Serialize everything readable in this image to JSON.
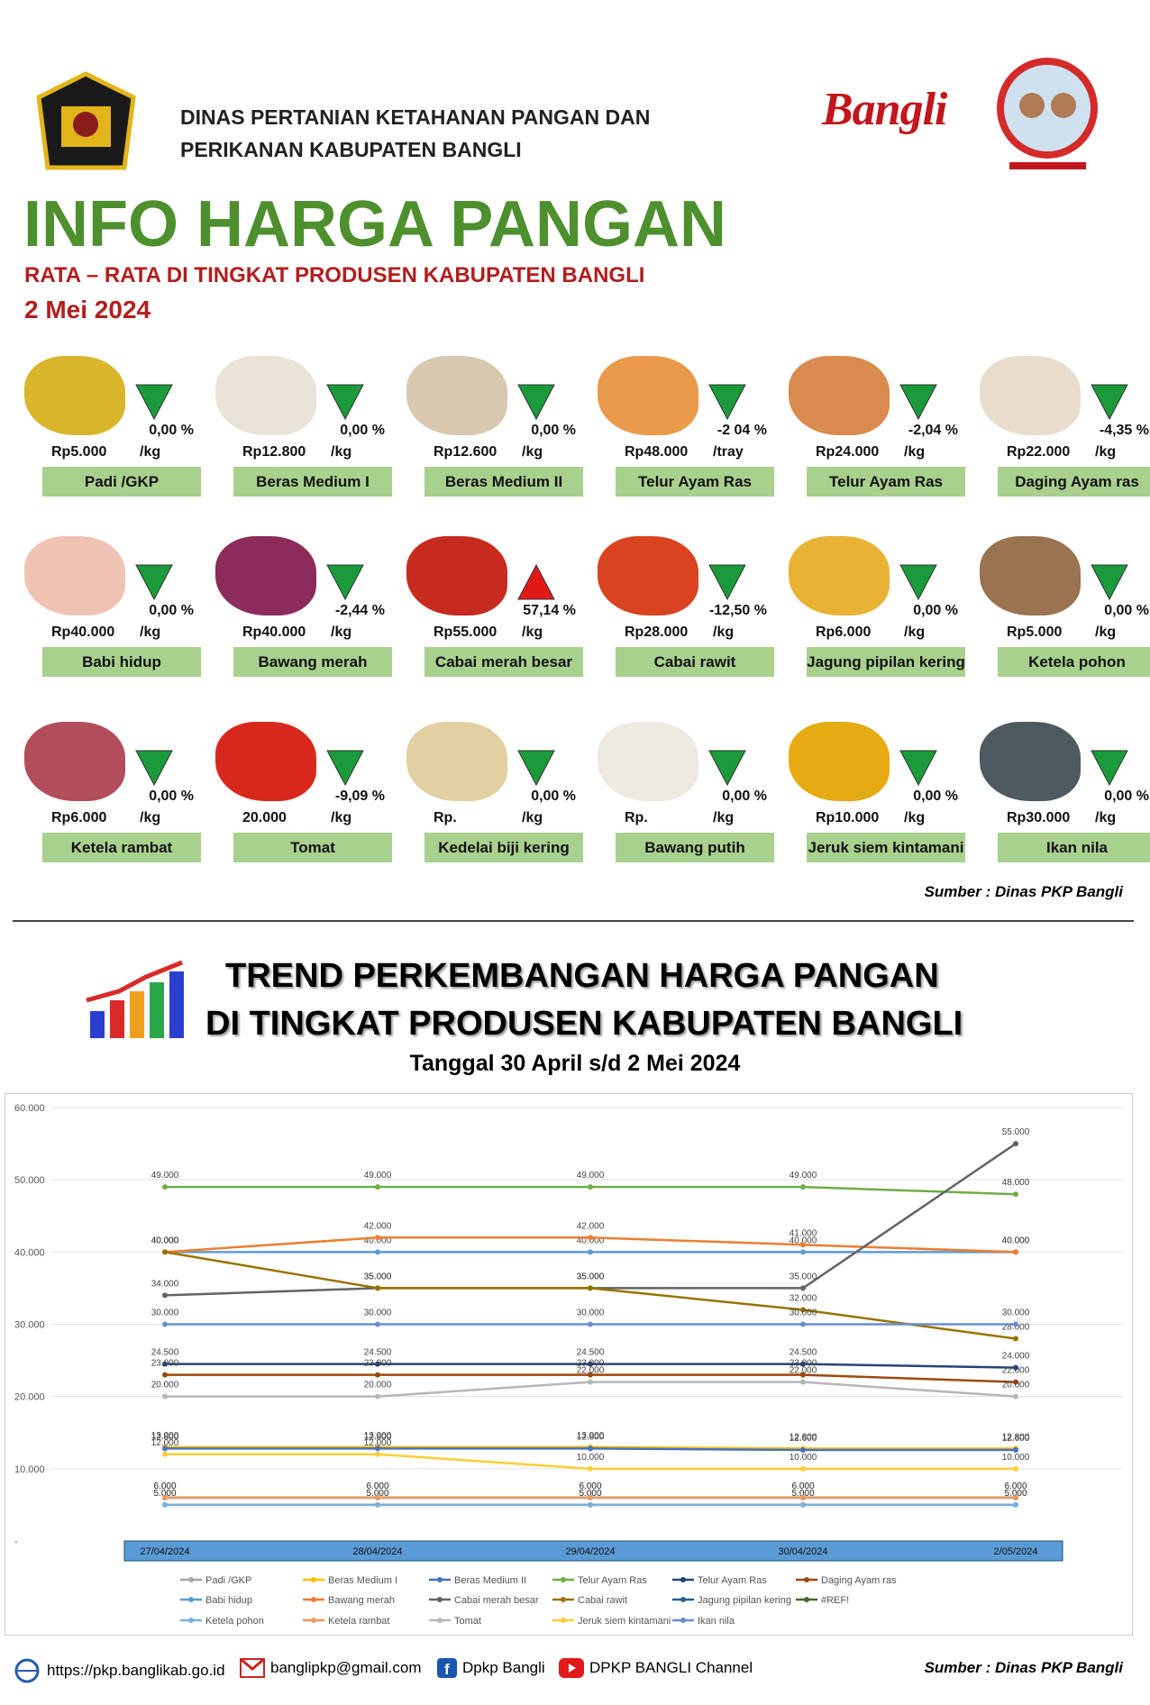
{
  "header": {
    "org": [
      "DINAS PERTANIAN KETAHANAN PANGAN DAN",
      "PERIKANAN KABUPATEN BANGLI"
    ],
    "brand": "Bangli",
    "title": "INFO HARGA PANGAN",
    "subtitle": "RATA – RATA DI TINGKAT PRODUSEN KABUPATEN BANGLI",
    "date": "2 Mei 2024"
  },
  "items": [
    {
      "name": "Padi /GKP",
      "price": "Rp5.000",
      "unit": "/kg",
      "change": "0,00 %",
      "trend": "down"
    },
    {
      "name": "Beras Medium I",
      "price": "Rp12.800",
      "unit": "/kg",
      "change": "0,00 %",
      "trend": "down"
    },
    {
      "name": "Beras Medium II",
      "price": "Rp12.600",
      "unit": "/kg",
      "change": "0,00 %",
      "trend": "down"
    },
    {
      "name": "Telur Ayam Ras",
      "price": "Rp48.000",
      "unit": "/tray",
      "change": "-2 04 %",
      "trend": "down"
    },
    {
      "name": "Telur Ayam Ras",
      "price": "Rp24.000",
      "unit": "/kg",
      "change": "-2,04 %",
      "trend": "down"
    },
    {
      "name": "Daging Ayam ras",
      "price": "Rp22.000",
      "unit": "/kg",
      "change": "-4,35 %",
      "trend": "down"
    },
    {
      "name": "Babi hidup",
      "price": "Rp40.000",
      "unit": "/kg",
      "change": "0,00 %",
      "trend": "down"
    },
    {
      "name": "Bawang merah",
      "price": "Rp40.000",
      "unit": "/kg",
      "change": "-2,44 %",
      "trend": "down"
    },
    {
      "name": "Cabai merah besar",
      "price": "Rp55.000",
      "unit": "/kg",
      "change": "57,14 %",
      "trend": "up"
    },
    {
      "name": "Cabai rawit",
      "price": "Rp28.000",
      "unit": "/kg",
      "change": "-12,50 %",
      "trend": "down"
    },
    {
      "name": "Jagung pipilan kering",
      "price": "Rp6.000",
      "unit": "/kg",
      "change": "0,00 %",
      "trend": "down"
    },
    {
      "name": "Ketela pohon",
      "price": "Rp5.000",
      "unit": "/kg",
      "change": "0,00 %",
      "trend": "down"
    },
    {
      "name": "Ketela rambat",
      "price": "Rp6.000",
      "unit": "/kg",
      "change": "0,00 %",
      "trend": "down"
    },
    {
      "name": "Tomat",
      "price": "20.000",
      "unit": "/kg",
      "change": "-9,09 %",
      "trend": "down"
    },
    {
      "name": "Kedelai biji kering",
      "price": "Rp.",
      "unit": "/kg",
      "change": "0,00 %",
      "trend": "down"
    },
    {
      "name": "Bawang putih",
      "price": "Rp.",
      "unit": "/kg",
      "change": "0,00 %",
      "trend": "down"
    },
    {
      "name": "Jeruk siem kintamani",
      "price": "Rp10.000",
      "unit": "/kg",
      "change": "0,00 %",
      "trend": "down"
    },
    {
      "name": "Ikan nila",
      "price": "Rp30.000",
      "unit": "/kg",
      "change": "0,00 %",
      "trend": "down"
    }
  ],
  "source": "Sumber : Dinas PKP Bangli",
  "trend": {
    "title": [
      "TREND PERKEMBANGAN HARGA PANGAN",
      "DI TINGKAT PRODUSEN KABUPATEN BANGLI"
    ],
    "subtitle": "Tanggal 30 April s/d 2 Mei 2024"
  },
  "chart_data": {
    "type": "line",
    "categories": [
      "27/04/2024",
      "28/04/2024",
      "29/04/2024",
      "30/04/2024",
      "2/05/2024"
    ],
    "ylim": [
      0,
      60000
    ],
    "yticks": [
      {
        "value": 0,
        "label": "-"
      },
      {
        "value": 10000,
        "label": "10.000"
      },
      {
        "value": 20000,
        "label": "20.000"
      },
      {
        "value": 30000,
        "label": "30.000"
      },
      {
        "value": 40000,
        "label": "40.000"
      },
      {
        "value": 50000,
        "label": "50.000"
      },
      {
        "value": 60000,
        "label": "60.000"
      }
    ],
    "grid": true,
    "series": [
      {
        "name": "Padi /GKP",
        "color": "#a5a5a5",
        "values": [
          5000,
          5000,
          5000,
          5000,
          5000
        ],
        "value_labels": [
          "5.000",
          "5.000",
          "5.000",
          "5.000",
          "5.000"
        ]
      },
      {
        "name": "Beras Medium I",
        "color": "#ffc000",
        "values": [
          13000,
          13000,
          13000,
          12800,
          12800
        ],
        "value_labels": [
          "13.000",
          "13.000",
          "13.000",
          "12.800",
          "12.800"
        ]
      },
      {
        "name": "Beras Medium II",
        "color": "#4472c4",
        "values": [
          12800,
          12800,
          12800,
          12600,
          12600
        ],
        "value_labels": [
          "12.800",
          "12.800",
          "12.800",
          "12.600",
          "12.600"
        ]
      },
      {
        "name": "Telur Ayam Ras",
        "color": "#70ad47",
        "values": [
          49000,
          49000,
          49000,
          49000,
          48000
        ],
        "value_labels": [
          "49.000",
          "49.000",
          "49.000",
          "49.000",
          "48.000"
        ]
      },
      {
        "name": "Telur Ayam Ras",
        "color": "#264478",
        "values": [
          24500,
          24500,
          24500,
          24500,
          24000
        ],
        "value_labels": [
          "24.500",
          "24.500",
          "24.500",
          "24.500",
          "24.000"
        ]
      },
      {
        "name": "Daging Ayam ras",
        "color": "#9e480e",
        "values": [
          23000,
          23000,
          23000,
          23000,
          22000
        ],
        "value_labels": [
          "23.000",
          "23.000",
          "23.000",
          "23.000",
          "22.000"
        ]
      },
      {
        "name": "Babi hidup",
        "color": "#5b9bd5",
        "values": [
          40000,
          40000,
          40000,
          40000,
          40000
        ],
        "value_labels": [
          "40.000",
          "40.000",
          "40.000",
          "40.000",
          "40.000"
        ]
      },
      {
        "name": "Bawang merah",
        "color": "#ed7d31",
        "values": [
          40000,
          42000,
          42000,
          41000,
          40000
        ],
        "value_labels": [
          "40.000",
          "42.000",
          "42.000",
          "41.000",
          "40.000"
        ]
      },
      {
        "name": "Cabai merah besar",
        "color": "#636363",
        "values": [
          34000,
          35000,
          35000,
          35000,
          55000
        ],
        "value_labels": [
          "34.000",
          "35.000",
          "35.000",
          "35.000",
          "55.000"
        ]
      },
      {
        "name": "Cabai rawit",
        "color": "#997300",
        "values": [
          40000,
          35000,
          35000,
          32000,
          28000
        ],
        "value_labels": [
          "40.000",
          "35.000",
          "35.000",
          "32.000",
          "28.000"
        ]
      },
      {
        "name": "Jagung pipilan kering",
        "color": "#255e91",
        "values": [
          6000,
          6000,
          6000,
          6000,
          6000
        ],
        "value_labels": [
          "6.000",
          "6.000",
          "6.000",
          "6.000",
          "6.000"
        ]
      },
      {
        "name": "#REF!",
        "color": "#43682b",
        "values": [
          null,
          null,
          null,
          null,
          null
        ]
      },
      {
        "name": "Ketela pohon",
        "color": "#7cafdd",
        "values": [
          5000,
          5000,
          5000,
          5000,
          5000
        ],
        "value_labels": [
          "5.000",
          "5.000",
          "5.000",
          "5.000",
          "5.000"
        ]
      },
      {
        "name": "Ketela rambat",
        "color": "#f1975a",
        "values": [
          6000,
          6000,
          6000,
          6000,
          6000
        ],
        "value_labels": [
          "6.000",
          "6.000",
          "6.000",
          "6.000",
          "6.000"
        ]
      },
      {
        "name": "Tomat",
        "color": "#b7b7b7",
        "values": [
          20000,
          20000,
          22000,
          22000,
          20000
        ],
        "value_labels": [
          "20.000",
          "20.000",
          "22.000",
          "22.000",
          "20.000"
        ]
      },
      {
        "name": "Jeruk siem kintamani",
        "color": "#ffcd33",
        "values": [
          12000,
          12000,
          10000,
          10000,
          10000
        ],
        "value_labels": [
          "12.000",
          "12.000",
          "10.000",
          "10.000",
          "10.000"
        ]
      },
      {
        "name": "Ikan nila",
        "color": "#698ed0",
        "values": [
          30000,
          30000,
          30000,
          30000,
          30000
        ],
        "value_labels": [
          "30.000",
          "30.000",
          "30.000",
          "30.000",
          "30.000"
        ]
      }
    ]
  },
  "footer": {
    "web": "https://pkp.banglikab.go.id",
    "mail": "banglipkp@gmail.com",
    "facebook": "Dpkp Bangli",
    "youtube": "DPKP BANGLI Channel",
    "source": "Sumber : Dinas PKP Bangli"
  }
}
